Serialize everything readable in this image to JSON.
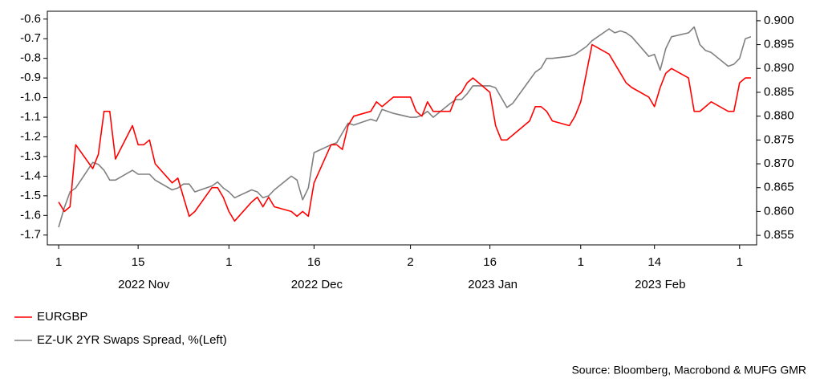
{
  "chart_data": {
    "type": "line",
    "x": [
      "2022-11-01",
      "2022-11-02",
      "2022-11-03",
      "2022-11-04",
      "2022-11-07",
      "2022-11-08",
      "2022-11-09",
      "2022-11-10",
      "2022-11-11",
      "2022-11-14",
      "2022-11-15",
      "2022-11-16",
      "2022-11-17",
      "2022-11-18",
      "2022-11-21",
      "2022-11-22",
      "2022-11-23",
      "2022-11-24",
      "2022-11-25",
      "2022-11-28",
      "2022-11-29",
      "2022-11-30",
      "2022-12-01",
      "2022-12-02",
      "2022-12-05",
      "2022-12-06",
      "2022-12-07",
      "2022-12-08",
      "2022-12-09",
      "2022-12-12",
      "2022-12-13",
      "2022-12-14",
      "2022-12-15",
      "2022-12-16",
      "2022-12-19",
      "2022-12-20",
      "2022-12-21",
      "2022-12-22",
      "2022-12-23",
      "2022-12-26",
      "2022-12-27",
      "2022-12-28",
      "2022-12-29",
      "2022-12-30",
      "2023-01-02",
      "2023-01-03",
      "2023-01-04",
      "2023-01-05",
      "2023-01-06",
      "2023-01-09",
      "2023-01-10",
      "2023-01-11",
      "2023-01-12",
      "2023-01-13",
      "2023-01-16",
      "2023-01-17",
      "2023-01-18",
      "2023-01-19",
      "2023-01-20",
      "2023-01-23",
      "2023-01-24",
      "2023-01-25",
      "2023-01-26",
      "2023-01-27",
      "2023-01-30",
      "2023-01-31",
      "2023-02-01",
      "2023-02-02",
      "2023-02-03",
      "2023-02-06",
      "2023-02-07",
      "2023-02-08",
      "2023-02-09",
      "2023-02-10",
      "2023-02-13",
      "2023-02-14",
      "2023-02-15",
      "2023-02-16",
      "2023-02-17",
      "2023-02-20",
      "2023-02-21",
      "2023-02-22",
      "2023-02-23",
      "2023-02-24",
      "2023-02-27",
      "2023-02-28",
      "2023-03-01",
      "2023-03-02",
      "2023-03-03"
    ],
    "series": [
      {
        "name": "EURGBP",
        "color": "#ff0000",
        "axis": "y2",
        "values": [
          0.862,
          0.86,
          0.861,
          0.874,
          0.869,
          0.872,
          0.881,
          0.881,
          0.871,
          0.878,
          0.874,
          0.874,
          0.875,
          0.87,
          0.866,
          0.867,
          0.863,
          0.859,
          0.86,
          0.865,
          0.865,
          0.863,
          0.86,
          0.858,
          0.862,
          0.863,
          0.861,
          0.863,
          0.861,
          0.86,
          0.859,
          0.86,
          0.859,
          0.866,
          0.874,
          0.874,
          0.873,
          0.878,
          0.88,
          0.881,
          0.883,
          0.882,
          0.883,
          0.884,
          0.884,
          0.881,
          0.88,
          0.883,
          0.881,
          0.881,
          0.884,
          0.885,
          0.887,
          0.888,
          0.885,
          0.878,
          0.875,
          0.875,
          0.876,
          0.879,
          0.882,
          0.882,
          0.881,
          0.879,
          0.878,
          0.88,
          0.883,
          0.889,
          0.895,
          0.893,
          0.891,
          0.889,
          0.887,
          0.886,
          0.884,
          0.882,
          0.886,
          0.889,
          0.89,
          0.888,
          0.881,
          0.881,
          0.882,
          0.883,
          0.881,
          0.881,
          0.887,
          0.888,
          0.888
        ]
      },
      {
        "name": "EZ-UK 2YR Swaps Spread, %(Left)",
        "color": "#808080",
        "values": [
          -1.66,
          -1.56,
          -1.48,
          -1.46,
          -1.33,
          -1.34,
          -1.37,
          -1.42,
          -1.42,
          -1.37,
          -1.39,
          -1.39,
          -1.39,
          -1.42,
          -1.47,
          -1.46,
          -1.44,
          -1.44,
          -1.48,
          -1.45,
          -1.43,
          -1.46,
          -1.48,
          -1.51,
          -1.47,
          -1.48,
          -1.51,
          -1.5,
          -1.47,
          -1.4,
          -1.42,
          -1.52,
          -1.46,
          -1.28,
          -1.24,
          -1.23,
          -1.18,
          -1.13,
          -1.14,
          -1.11,
          -1.12,
          -1.06,
          -1.07,
          -1.08,
          -1.1,
          -1.1,
          -1.09,
          -1.07,
          -1.1,
          -1.03,
          -1.01,
          -1.01,
          -0.98,
          -0.94,
          -0.94,
          -0.95,
          -1.0,
          -1.05,
          -1.03,
          -0.91,
          -0.87,
          -0.85,
          -0.8,
          -0.8,
          -0.79,
          -0.78,
          -0.76,
          -0.74,
          -0.71,
          -0.65,
          -0.67,
          -0.66,
          -0.67,
          -0.69,
          -0.79,
          -0.78,
          -0.86,
          -0.75,
          -0.69,
          -0.67,
          -0.64,
          -0.73,
          -0.76,
          -0.77,
          -0.84,
          -0.83,
          -0.8,
          -0.7,
          -0.69
        ]
      }
    ],
    "xlim": [
      "2022-10-30",
      "2023-03-04"
    ],
    "xticks": [
      {
        "value": "2022-11-01",
        "label": "1"
      },
      {
        "value": "2022-11-15",
        "label": "15"
      },
      {
        "value": "2022-12-01",
        "label": "1"
      },
      {
        "value": "2022-12-16",
        "label": "16"
      },
      {
        "value": "2023-01-02",
        "label": "2"
      },
      {
        "value": "2023-01-16",
        "label": "16"
      },
      {
        "value": "2023-02-01",
        "label": "1"
      },
      {
        "value": "2023-02-14",
        "label": "14"
      },
      {
        "value": "2023-03-01",
        "label": "1"
      }
    ],
    "month_labels": [
      {
        "value": "2022-11",
        "label": "2022 Nov"
      },
      {
        "value": "2022-12",
        "label": "2022 Dec"
      },
      {
        "value": "2023-01",
        "label": "2023 Jan"
      },
      {
        "value": "2023-02",
        "label": "2023 Feb"
      }
    ],
    "ylim": [
      -1.75,
      -0.56
    ],
    "yticks": [
      -0.6,
      -0.7,
      -0.8,
      -0.9,
      {
        "value": -1,
        "label": "-1.0"
      },
      -1.1,
      -1.2,
      -1.3,
      -1.4,
      -1.5,
      -1.6,
      -1.7
    ],
    "y2lim": [
      0.853,
      0.902
    ],
    "y2ticks": [
      {
        "value": 0.9,
        "label": "0.900"
      },
      {
        "value": 0.895,
        "label": "0.895"
      },
      {
        "value": 0.89,
        "label": "0.890"
      },
      {
        "value": 0.885,
        "label": "0.885"
      },
      {
        "value": 0.88,
        "label": "0.880"
      },
      {
        "value": 0.875,
        "label": "0.875"
      },
      {
        "value": 0.87,
        "label": "0.870"
      },
      {
        "value": 0.865,
        "label": "0.865"
      },
      {
        "value": 0.86,
        "label": "0.860"
      },
      {
        "value": 0.855,
        "label": "0.855"
      }
    ],
    "source": "Source: Bloomberg, Macrobond & MUFG GMR"
  }
}
